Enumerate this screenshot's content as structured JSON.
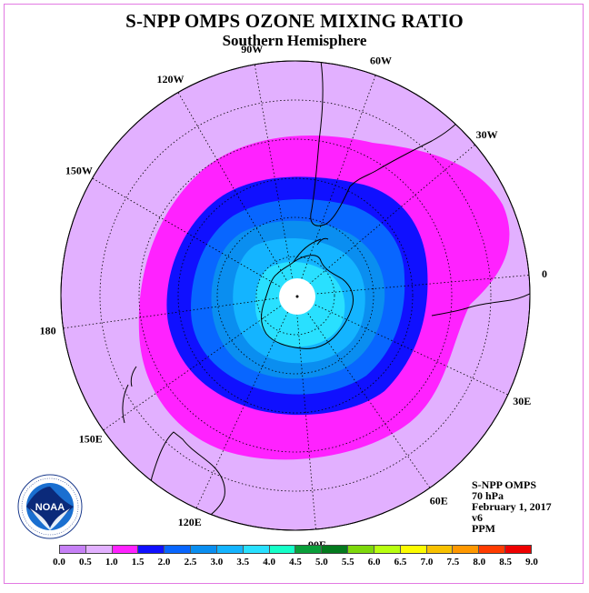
{
  "title": "S-NPP OMPS OZONE MIXING RATIO",
  "subtitle": "Southern Hemisphere",
  "longitude_labels": [
    "90W",
    "60W",
    "30W",
    "0",
    "30E",
    "60E",
    "90E",
    "120E",
    "150E",
    "180",
    "150W",
    "120W"
  ],
  "info_lines": [
    "S-NPP OMPS",
    "70 hPa",
    "February 1, 2017",
    "v6",
    "PPM"
  ],
  "colorbar": {
    "ticks": [
      "0.0",
      "0.5",
      "1.0",
      "1.5",
      "2.0",
      "2.5",
      "3.0",
      "3.5",
      "4.0",
      "4.5",
      "5.0",
      "5.5",
      "6.0",
      "6.5",
      "7.0",
      "7.5",
      "8.0",
      "8.5",
      "9.0"
    ],
    "colors": [
      "#c680f6",
      "#e2b0ff",
      "#ff22ff",
      "#1010ff",
      "#0866ff",
      "#0a8ef0",
      "#14b4ff",
      "#29e0ff",
      "#16ffc8",
      "#0a9e3a",
      "#047a1e",
      "#7dd80b",
      "#b8ff10",
      "#fcfc00",
      "#f8c100",
      "#ff9800",
      "#ff3c00",
      "#ee0000",
      "#8a4c3a"
    ]
  },
  "logo_text": "NOAA",
  "logo_ring_text": "NATIONAL OCEANIC AND ATMOSPHERIC ADMINISTRATION · U.S. DEPARTMENT OF COMMERCE"
}
